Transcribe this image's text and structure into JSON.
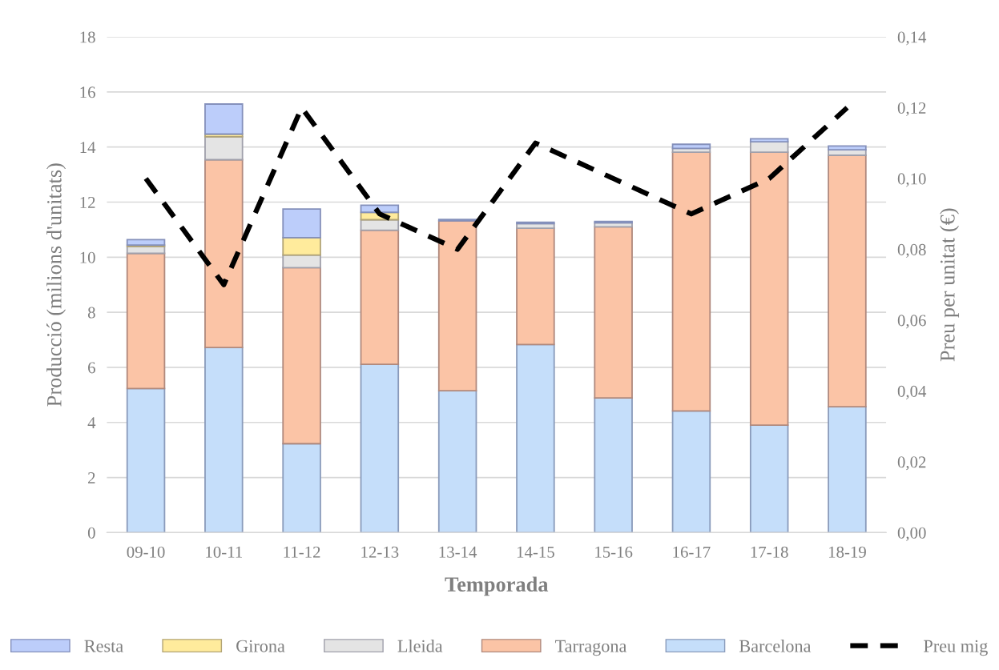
{
  "chart_data": {
    "type": "bar",
    "stacked": true,
    "xlabel": "Temporada",
    "ylabel": "Producció (milions d'unitats)",
    "y2label": "Preu per unitat (€)",
    "categories": [
      "09-10",
      "10-11",
      "11-12",
      "12-13",
      "13-14",
      "14-15",
      "15-16",
      "16-17",
      "17-18",
      "18-19"
    ],
    "series": [
      {
        "name": "Barcelona",
        "color": "#c5defa",
        "values": [
          5.23,
          6.72,
          3.23,
          6.11,
          5.15,
          6.83,
          4.89,
          4.42,
          3.9,
          4.57
        ]
      },
      {
        "name": "Tarragona",
        "color": "#fbc4a6",
        "values": [
          4.91,
          6.82,
          6.39,
          4.87,
          6.17,
          4.22,
          6.21,
          9.39,
          9.91,
          9.13
        ]
      },
      {
        "name": "Lleida",
        "color": "#e4e4e4",
        "values": [
          0.25,
          0.83,
          0.46,
          0.38,
          null,
          0.17,
          0.15,
          0.14,
          0.38,
          0.2
        ]
      },
      {
        "name": "Girona",
        "color": "#ffeb9c",
        "values": [
          0.05,
          0.1,
          0.63,
          0.27,
          null,
          null,
          null,
          null,
          null,
          null
        ]
      },
      {
        "name": "Resta",
        "color": "#bccdfa",
        "values": [
          0.2,
          1.09,
          1.04,
          0.26,
          0.05,
          0.05,
          0.05,
          0.15,
          0.11,
          0.14
        ]
      },
      {
        "name": "Preu mig",
        "type": "line",
        "axis": "y2",
        "color": "#000000",
        "line_style": "dashed",
        "values": [
          0.1,
          0.07,
          0.12,
          0.09,
          0.08,
          0.11,
          0.1,
          0.09,
          0.1,
          0.12
        ]
      }
    ],
    "ylim": [
      0,
      18
    ],
    "yticks": [
      0,
      2,
      4,
      6,
      8,
      10,
      12,
      14,
      16,
      18
    ],
    "y2lim": [
      0,
      0.14
    ],
    "y2ticks": [
      {
        "value": 0,
        "label": "0,00"
      },
      {
        "value": 0.02,
        "label": "0,02"
      },
      {
        "value": 0.04,
        "label": "0,04"
      },
      {
        "value": 0.06,
        "label": "0,06"
      },
      {
        "value": 0.08,
        "label": "0,08"
      },
      {
        "value": 0.1,
        "label": "0,10"
      },
      {
        "value": 0.12,
        "label": "0,12"
      },
      {
        "value": 0.14,
        "label": "0,14"
      }
    ],
    "grid": "y",
    "legend": "bottom"
  }
}
